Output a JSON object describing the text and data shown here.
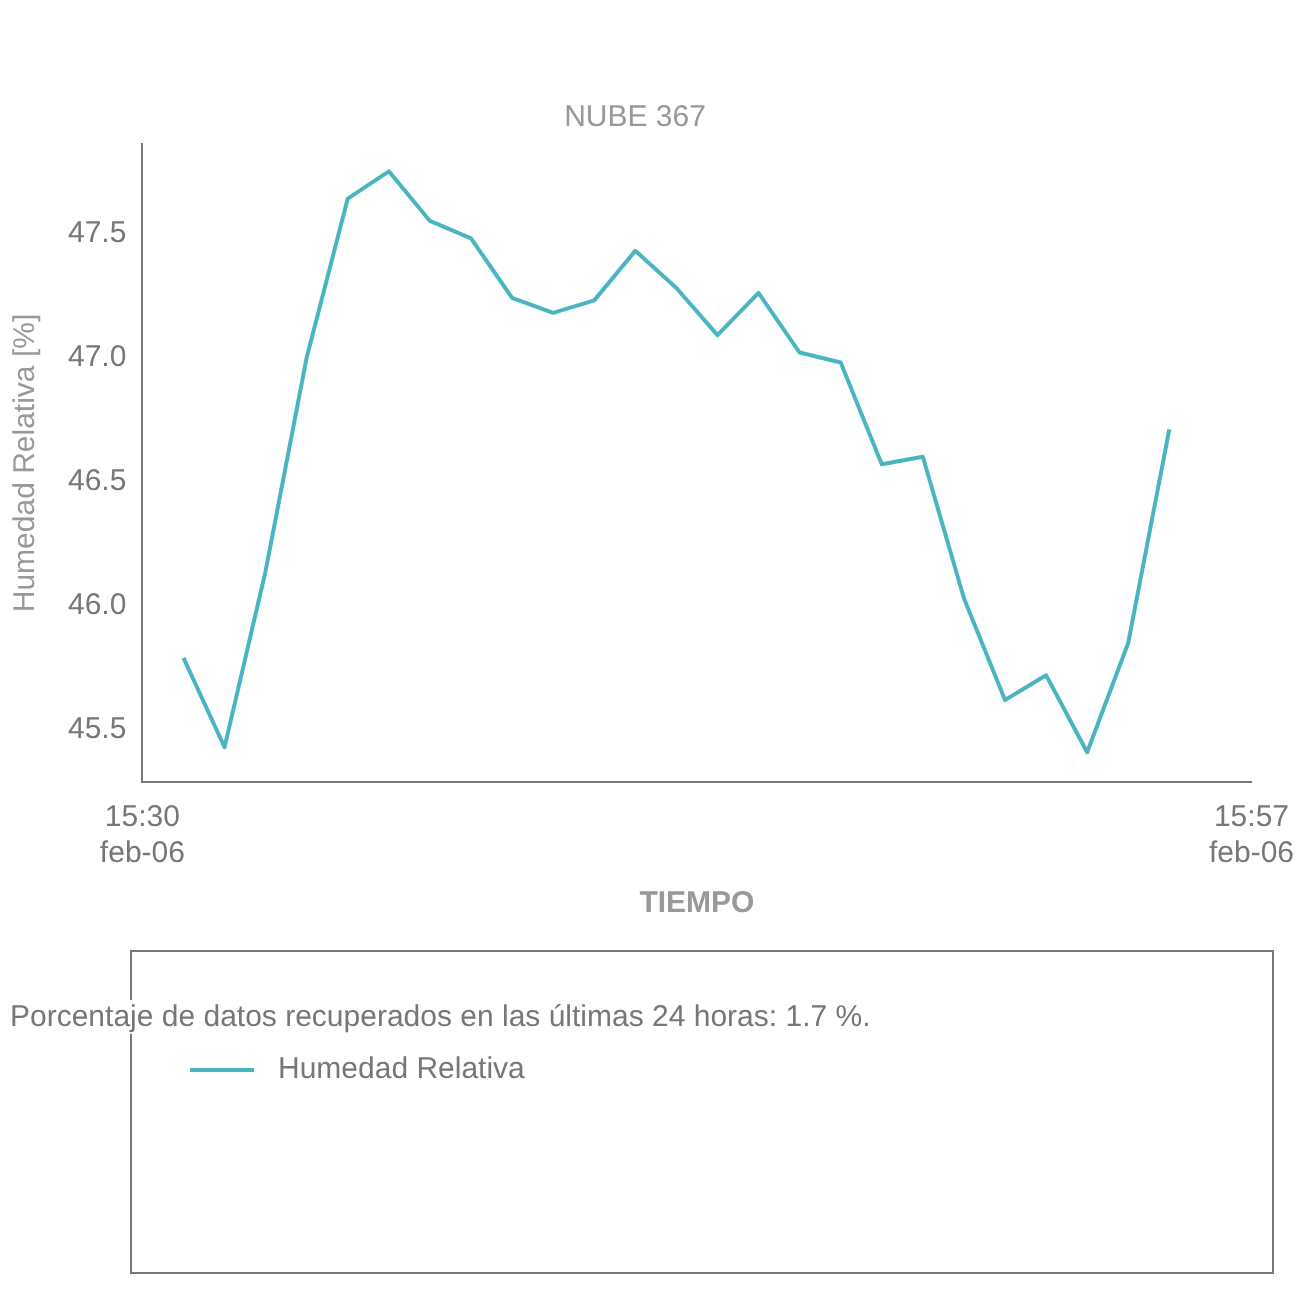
{
  "chart_data": {
    "type": "line",
    "title": "NUBE 367",
    "xlabel": "TIEMPO",
    "ylabel": "Humedad Relativa [%]",
    "annotations": [
      "Porcentaje de datos recuperados en las últimas 24 horas: 1.7 %."
    ],
    "x": [
      "--02-06T15:31",
      "--02-06T15:32",
      "--02-06T15:33",
      "--02-06T15:34",
      "--02-06T15:35",
      "--02-06T15:36",
      "--02-06T15:37",
      "--02-06T15:38",
      "--02-06T15:39",
      "--02-06T15:40",
      "--02-06T15:41",
      "--02-06T15:42",
      "--02-06T15:43",
      "--02-06T15:44",
      "--02-06T15:45",
      "--02-06T15:46",
      "--02-06T15:47",
      "--02-06T15:48",
      "--02-06T15:49",
      "--02-06T15:50",
      "--02-06T15:51",
      "--02-06T15:52",
      "--02-06T15:53",
      "--02-06T15:54",
      "--02-06T15:55"
    ],
    "series": [
      {
        "name": "Humedad Relativa",
        "color": "#4ab5c1",
        "values": [
          45.79,
          45.43,
          46.14,
          47.0,
          47.64,
          47.75,
          47.55,
          47.48,
          47.24,
          47.18,
          47.23,
          47.43,
          47.28,
          47.09,
          47.26,
          47.02,
          46.98,
          46.57,
          46.6,
          46.03,
          45.62,
          45.72,
          45.41,
          45.85,
          46.71
        ]
      }
    ],
    "xlim": [
      "--02-06T15:30",
      "--02-06T15:57"
    ],
    "xticks": [
      {
        "value": "--02-06T15:30",
        "label": "15:30 feb-06"
      },
      {
        "value": "--02-06T15:57",
        "label": "15:57 feb-06"
      }
    ],
    "ylim": [
      45.29,
      47.86
    ],
    "yticks": [
      {
        "value": 45.5,
        "label": "45.5"
      },
      {
        "value": 46,
        "label": "46.0"
      },
      {
        "value": 46.5,
        "label": "46.5"
      },
      {
        "value": 47,
        "label": "47.0"
      },
      {
        "value": 47.5,
        "label": "47.5"
      }
    ],
    "grid": false,
    "legend": "bottom",
    "marker": "none",
    "line_style": "solid"
  }
}
